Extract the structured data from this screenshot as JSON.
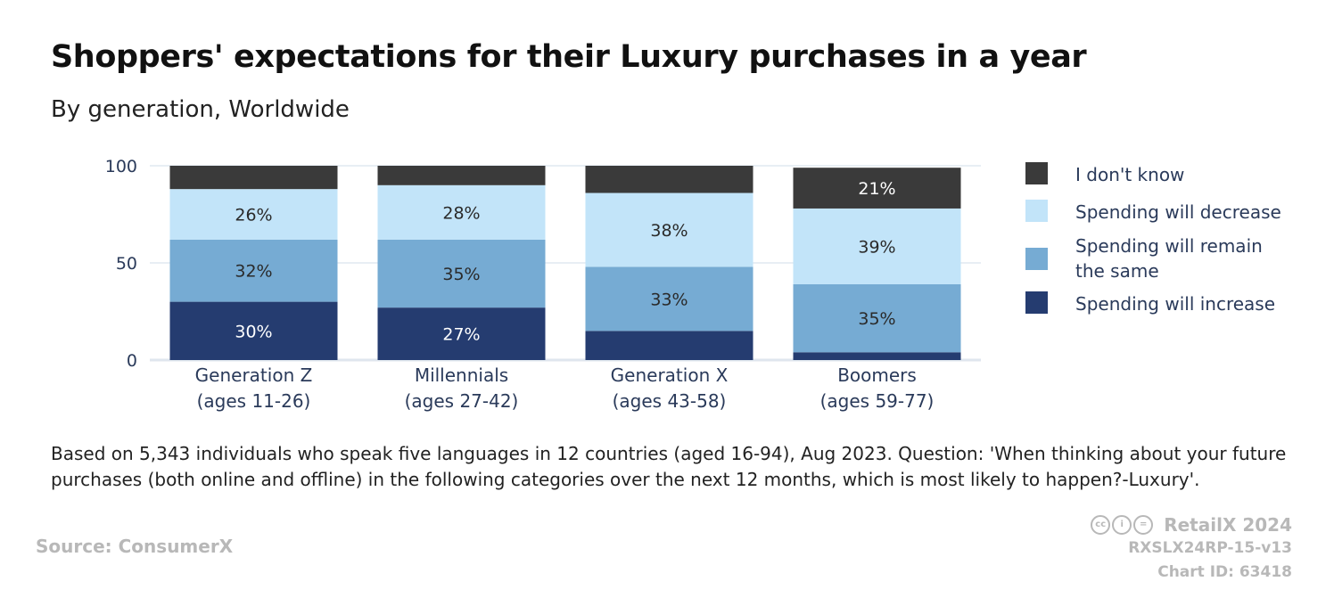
{
  "title": "Shoppers' expectations for their Luxury purchases in a year",
  "subtitle": "By generation, Worldwide",
  "note": "Based on 5,343 individuals who speak five languages in 12 countries (aged 16-94), Aug 2023. Question: 'When thinking about your future purchases (both online and offline) in the following categories over the next 12 months, which is most likely to happen?-Luxury'.",
  "footer": {
    "source": "Source: ConsumerX",
    "brand": "RetailX 2024",
    "code": "RXSLX24RP-15-v13",
    "chart_id": "Chart ID: 63418",
    "license_icons": [
      "cc-icon",
      "by-icon",
      "nd-icon"
    ]
  },
  "legend": [
    {
      "label": "I don't know",
      "color": "#3a3a3a"
    },
    {
      "label": "Spending will decrease",
      "color": "#c2e4f9"
    },
    {
      "label": "Spending will remain the same",
      "color": "#76abd3"
    },
    {
      "label": "Spending will increase",
      "color": "#253c70"
    }
  ],
  "chart_data": {
    "type": "bar",
    "stacked": true,
    "categories": [
      [
        "Generation Z",
        "(ages 11-26)"
      ],
      [
        "Millennials",
        "(ages 27-42)"
      ],
      [
        "Generation X",
        "(ages 43-58)"
      ],
      [
        "Boomers",
        "(ages 59-77)"
      ]
    ],
    "series": [
      {
        "name": "Spending will increase",
        "color": "#253c70",
        "label_color": "#ffffff",
        "values": [
          30,
          27,
          15,
          4
        ],
        "labels": [
          "30%",
          "27%",
          "",
          ""
        ]
      },
      {
        "name": "Spending will remain the same",
        "color": "#76abd3",
        "label_color": "#2a2a2a",
        "values": [
          32,
          35,
          33,
          35
        ],
        "labels": [
          "32%",
          "35%",
          "33%",
          "35%"
        ]
      },
      {
        "name": "Spending will decrease",
        "color": "#c2e4f9",
        "label_color": "#2a2a2a",
        "values": [
          26,
          28,
          38,
          39
        ],
        "labels": [
          "26%",
          "28%",
          "38%",
          "39%"
        ]
      },
      {
        "name": "I don't know",
        "color": "#3a3a3a",
        "label_color": "#ffffff",
        "values": [
          12,
          10,
          14,
          21
        ],
        "labels": [
          "",
          "",
          "",
          "21%"
        ]
      }
    ],
    "yticks": [
      0,
      50,
      100
    ],
    "ylim": [
      0,
      100
    ],
    "grid": true,
    "legend_position": "right"
  }
}
